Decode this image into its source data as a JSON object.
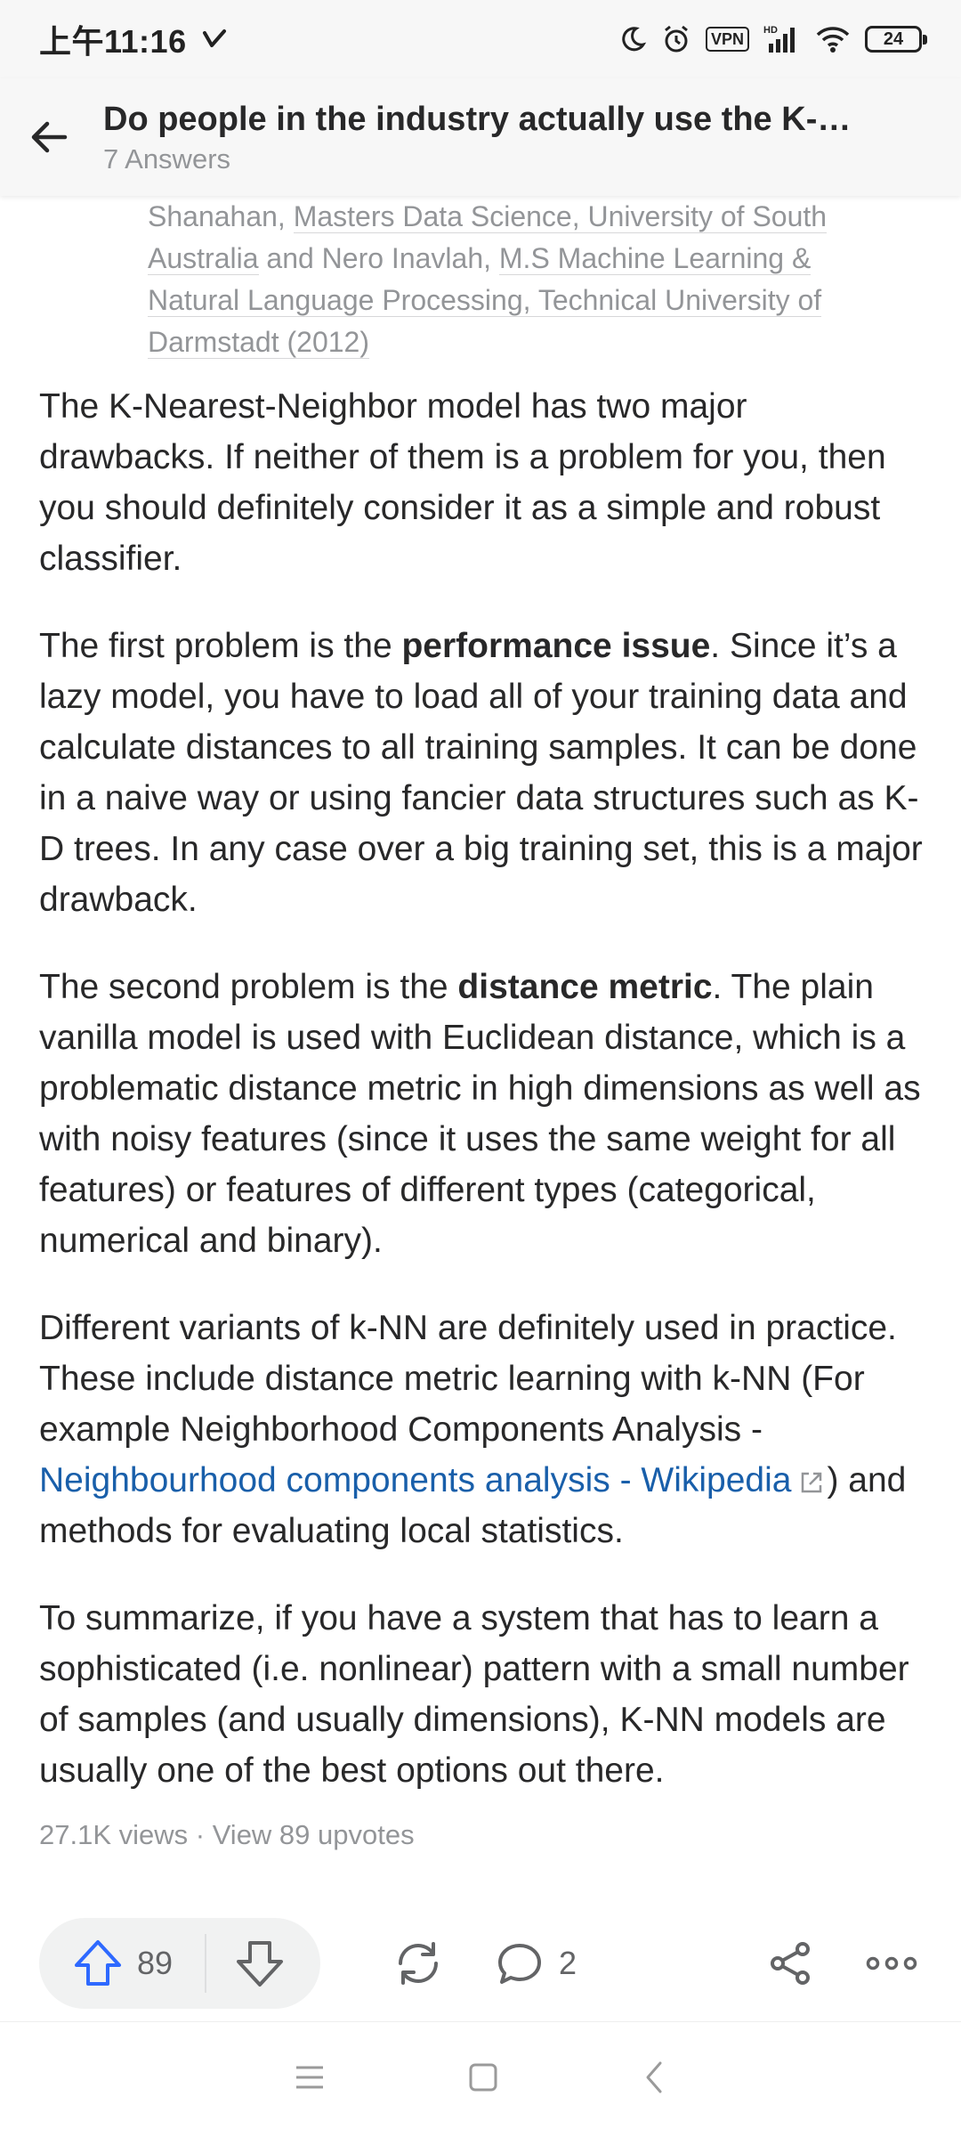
{
  "status_bar": {
    "time": "上午11:16",
    "vpn": "VPN",
    "battery": "24"
  },
  "header": {
    "title": "Do people in the industry actually use the K-…",
    "subtitle": "7 Answers"
  },
  "answer": {
    "credentials": {
      "pre": "Shanahan, ",
      "link1": "Masters Data Science, University of South Australia",
      "mid": " and Nero Inavlah, ",
      "link2": "M.S Machine Learning & Natural Language Processing, Technical University of Darmstadt (2012)"
    },
    "p1": "The K-Nearest-Neighbor model has two major drawbacks. If neither of them is a problem for you, then you should definitely consider it as a simple and robust classifier.",
    "p2_pre": "The first problem is the ",
    "p2_bold": "performance issue",
    "p2_post": ". Since it’s a lazy model, you have to load all of your training data and calculate distances to all training samples. It can be done in a naive way or using fancier data structures such as K-D trees. In any case over a big training set, this is a major drawback.",
    "p3_pre": "The second problem is the ",
    "p3_bold": "distance metric",
    "p3_post": ". The plain vanilla model is used with Euclidean distance, which is a problematic distance metric in high dimensions as well as with noisy features (since it uses the same weight for all features) or features of different types (categorical, numerical and binary).",
    "p4_pre": "Different variants of k-NN are definitely used in practice. These include distance metric learning with k-NN (For example Neighborhood Components Analysis - ",
    "p4_link": "Neighbourhood components analysis - Wikipedia",
    "p4_post": ") and methods for evaluating local statistics.",
    "p5": "To summarize, if you have a system that has to learn a sophisticated (i.e. nonlinear) pattern with a small number of samples (and usually dimensions), K-NN models are usually one of the best options out there.",
    "meta": "27.1K views · View 89 upvotes"
  },
  "actions": {
    "upvotes": "89",
    "comments": "2"
  },
  "colors": {
    "link": "#195faa",
    "upvote": "#2e69ff",
    "text": "#282829",
    "muted": "#939598"
  }
}
